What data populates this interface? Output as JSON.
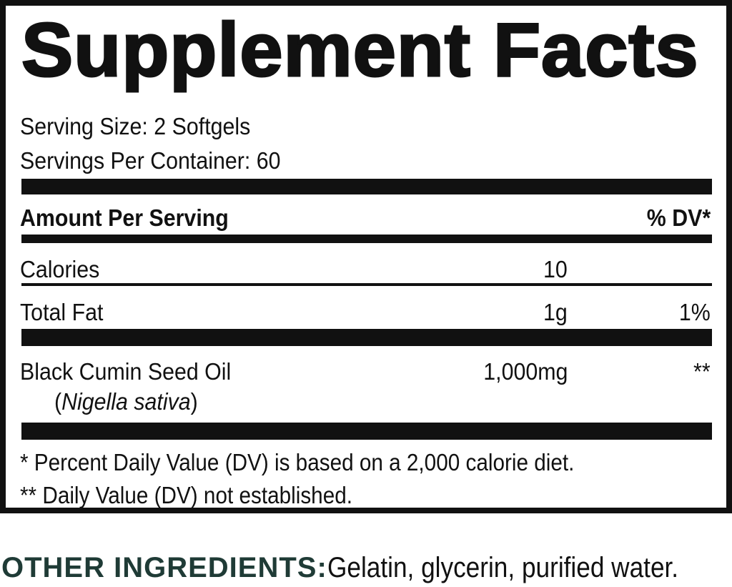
{
  "title": "Supplement Facts",
  "serving_size": "Serving Size: 2 Softgels",
  "servings_per_container": "Servings Per Container: 60",
  "header": {
    "amount": "Amount Per Serving",
    "dv": "% DV*"
  },
  "rows": [
    {
      "name": "Calories",
      "amount": "10",
      "dv": ""
    },
    {
      "name": "Total Fat",
      "amount": "1g",
      "dv": "1%"
    },
    {
      "name": "Black Cumin Seed Oil",
      "sub_open": "(",
      "sub_italic": "Nigella sativa",
      "sub_close": ")",
      "amount": "1,000mg",
      "dv": "**"
    }
  ],
  "footnotes": [
    "* Percent Daily Value (DV) is based on a 2,000 calorie diet.",
    "** Daily Value (DV) not established."
  ],
  "other_ingredients": {
    "label": "OTHER INGREDIENTS:",
    "value": " Gelatin, glycerin, purified water."
  },
  "colors": {
    "text": "#111111",
    "other_label": "#1f3b36"
  }
}
